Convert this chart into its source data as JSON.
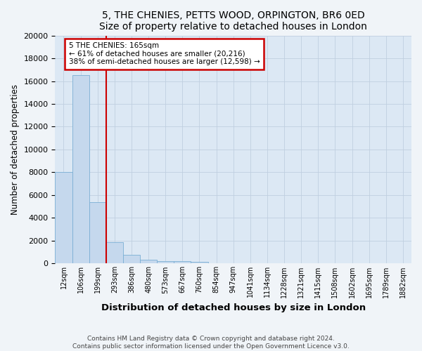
{
  "title1": "5, THE CHENIES, PETTS WOOD, ORPINGTON, BR6 0ED",
  "title2": "Size of property relative to detached houses in London",
  "xlabel": "Distribution of detached houses by size in London",
  "ylabel": "Number of detached properties",
  "bar_color": "#c5d8ed",
  "bar_edge_color": "#7bafd4",
  "categories": [
    "12sqm",
    "106sqm",
    "199sqm",
    "293sqm",
    "386sqm",
    "480sqm",
    "573sqm",
    "667sqm",
    "760sqm",
    "854sqm",
    "947sqm",
    "1041sqm",
    "1134sqm",
    "1228sqm",
    "1321sqm",
    "1415sqm",
    "1508sqm",
    "1602sqm",
    "1695sqm",
    "1789sqm",
    "1882sqm"
  ],
  "values": [
    8050,
    16500,
    5350,
    1850,
    750,
    330,
    230,
    210,
    150,
    0,
    0,
    0,
    0,
    0,
    0,
    0,
    0,
    0,
    0,
    0,
    0
  ],
  "vline_x": 2.5,
  "vline_color": "#cc0000",
  "annotation_line1": "5 THE CHENIES: 165sqm",
  "annotation_line2": "← 61% of detached houses are smaller (20,216)",
  "annotation_line3": "38% of semi-detached houses are larger (12,598) →",
  "annotation_box_color": "#ffffff",
  "annotation_box_edge": "#cc0000",
  "ylim": [
    0,
    20000
  ],
  "yticks": [
    0,
    2000,
    4000,
    6000,
    8000,
    10000,
    12000,
    14000,
    16000,
    18000,
    20000
  ],
  "grid_color": "#c0cfe0",
  "background_color": "#dce8f4",
  "fig_bg_color": "#f0f4f8",
  "footer1": "Contains HM Land Registry data © Crown copyright and database right 2024.",
  "footer2": "Contains public sector information licensed under the Open Government Licence v3.0.",
  "title_fontsize": 11,
  "subtitle_fontsize": 10
}
